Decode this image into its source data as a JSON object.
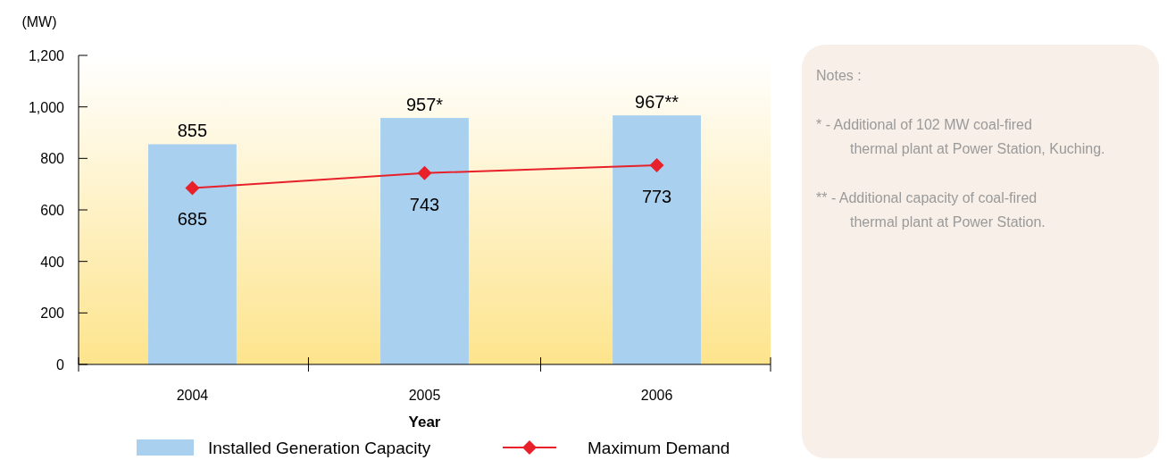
{
  "chart_data": {
    "type": "bar",
    "xlabel": "Year",
    "ylabel": "(MW)",
    "categories": [
      "2004",
      "2005",
      "2006"
    ],
    "series": [
      {
        "name": "Installed Generation Capacity",
        "color": "#a9d0ef",
        "values": [
          855,
          957,
          967
        ],
        "value_labels": [
          "855",
          "957*",
          "967**"
        ]
      },
      {
        "name": "Maximum Demand",
        "type": "line",
        "color": "#e8202a",
        "values": [
          685,
          743,
          773
        ],
        "value_labels": [
          "685",
          "743",
          "773"
        ],
        "marker": "diamond"
      }
    ],
    "ylim": [
      0,
      1200
    ],
    "yticks": [
      0,
      200,
      400,
      600,
      {
        "value": 800,
        "label": "800"
      },
      {
        "value": 1000,
        "label": "1,000"
      },
      {
        "value": 1200,
        "label": "1,200"
      }
    ],
    "grid": false,
    "legend": "bottom",
    "annotations": [
      "Notes :",
      "*  -  Additional of 102 MW coal-fired thermal plant at Power Station, Kuching.",
      "**  -  Additional capacity of coal-fired thermal plant at Power Station."
    ]
  }
}
